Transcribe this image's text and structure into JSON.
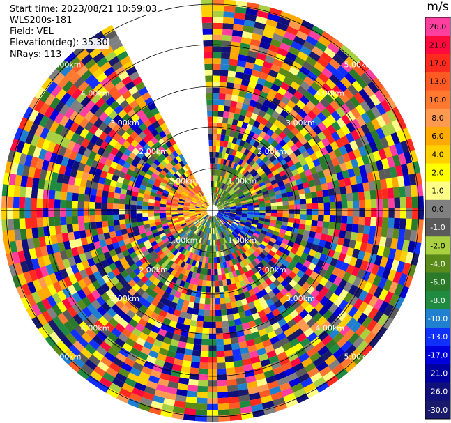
{
  "header": {
    "start_time": "Start time: 2023/08/21 10:59:03",
    "station": "WLS200s-181",
    "field": "Field: VEL",
    "elevation": "Elevation(deg): 35.30",
    "nrays": "NRays: 113"
  },
  "chart_data": {
    "type": "heatmap",
    "subtype": "polar-ppi",
    "range_ring_labels": [
      "1.00km",
      "2.00km",
      "3.00km",
      "4.00km",
      "5.00km"
    ],
    "colorbar": {
      "title": "m/s",
      "tick_labels": [
        "26.0",
        "21.0",
        "17.0",
        "13.0",
        "10.0",
        "8.0",
        "6.0",
        "4.0",
        "2.0",
        "1.0",
        "0.0",
        "-1.0",
        "-2.0",
        "-4.0",
        "-6.0",
        "-8.0",
        "-10.0",
        "-13.0",
        "-17.0",
        "-21.0",
        "-26.0",
        "-30.0"
      ],
      "colors": [
        "#ff3fa0",
        "#ff0a3c",
        "#ff2a1e",
        "#ff5a24",
        "#ff7a30",
        "#ff9a50",
        "#ffaa00",
        "#ffd000",
        "#ffff00",
        "#ffff88",
        "#808080",
        "#5a5a5a",
        "#a8d040",
        "#5a8a1a",
        "#2a7a2a",
        "#208a40",
        "#2080d0",
        "#1030ff",
        "#0000dd",
        "#0000a0",
        "#10107a",
        "#1a1a6a"
      ]
    },
    "nrays": 113,
    "range_gates": 36,
    "max_range_km": 5.0,
    "missing_sector_deg": [
      330,
      358
    ],
    "near_field_pattern": [
      {
        "sector_deg": [
          0,
          80
        ],
        "values": [
          "-1.0",
          "-2.0",
          "-4.0",
          "-6.0"
        ]
      },
      {
        "sector_deg": [
          80,
          140
        ],
        "values": [
          "-26.0",
          "-21.0",
          "-17.0",
          "-13.0",
          "-10.0"
        ]
      },
      {
        "sector_deg": [
          140,
          240
        ],
        "values": [
          "-10.0",
          "-8.0",
          "-6.0",
          "-4.0",
          "-2.0",
          "-1.0",
          "0.0",
          "1.0"
        ]
      },
      {
        "sector_deg": [
          240,
          330
        ],
        "values": [
          "2.0",
          "4.0",
          "6.0",
          "8.0",
          "10.0",
          "13.0"
        ]
      }
    ]
  }
}
